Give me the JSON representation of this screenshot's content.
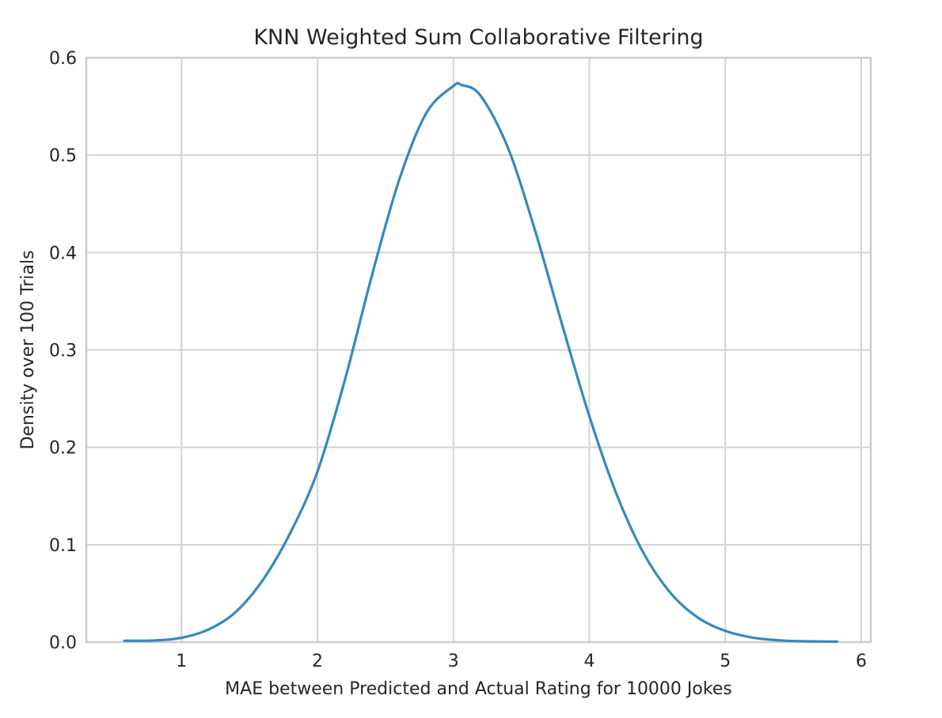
{
  "chart_data": {
    "type": "line",
    "title": "KNN Weighted Sum Collaborative Filtering",
    "xlabel": "MAE between Predicted and Actual Rating for 10000 Jokes",
    "ylabel": "Density over 100 Trials",
    "xlim": [
      0.3,
      6.07
    ],
    "ylim": [
      0,
      0.6
    ],
    "xticks": [
      1,
      2,
      3,
      4,
      5,
      6
    ],
    "xtick_labels": [
      "1",
      "2",
      "3",
      "4",
      "5",
      "6"
    ],
    "yticks": [
      0.0,
      0.1,
      0.2,
      0.3,
      0.4,
      0.5,
      0.6
    ],
    "ytick_labels": [
      "0.0",
      "0.1",
      "0.2",
      "0.3",
      "0.4",
      "0.5",
      "0.6"
    ],
    "grid": true,
    "legend": "none",
    "series": [
      {
        "color": "#348abd",
        "x": [
          0.58,
          0.8,
          1.0,
          1.2,
          1.4,
          1.6,
          1.8,
          2.0,
          2.2,
          2.4,
          2.6,
          2.8,
          3.0,
          3.06,
          3.2,
          3.4,
          3.6,
          3.8,
          4.0,
          4.2,
          4.4,
          4.6,
          4.8,
          5.0,
          5.2,
          5.4,
          5.6,
          5.82
        ],
        "y": [
          0.0014,
          0.0016,
          0.0044,
          0.013,
          0.031,
          0.064,
          0.112,
          0.175,
          0.268,
          0.376,
          0.474,
          0.543,
          0.571,
          0.572,
          0.561,
          0.508,
          0.423,
          0.326,
          0.232,
          0.152,
          0.091,
          0.05,
          0.025,
          0.0115,
          0.0046,
          0.0018,
          0.0008,
          0.0005
        ]
      }
    ]
  }
}
